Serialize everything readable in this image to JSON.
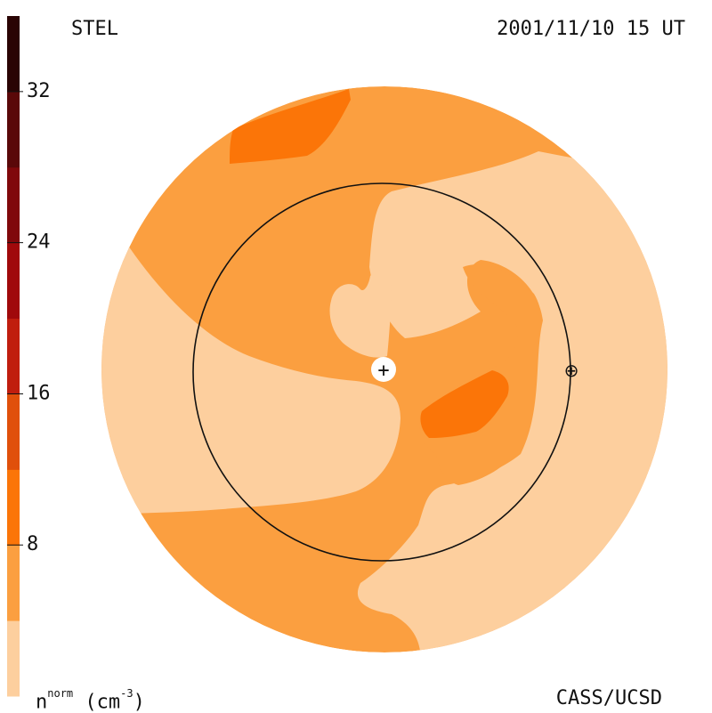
{
  "chart_data": {
    "type": "heatmap",
    "title_left": "STEL",
    "title_right": "2001/11/10 15 UT",
    "credit": "CASS/UCSD",
    "colorbar": {
      "label_main": "n",
      "label_sup": "norm",
      "label_units": "(cm",
      "label_units_sup": "-3",
      "label_units_close": ")",
      "range": [
        0,
        36
      ],
      "ticks": [
        {
          "value": 32,
          "label": "32"
        },
        {
          "value": 24,
          "label": "24"
        },
        {
          "value": 16,
          "label": "16"
        },
        {
          "value": 8,
          "label": "8"
        }
      ],
      "bands": [
        {
          "from": 0,
          "to": 4,
          "color": "#fdcf9e"
        },
        {
          "from": 4,
          "to": 8,
          "color": "#fb9f40"
        },
        {
          "from": 8,
          "to": 12,
          "color": "#fb7508"
        },
        {
          "from": 12,
          "to": 16,
          "color": "#e0500b"
        },
        {
          "from": 16,
          "to": 20,
          "color": "#c01e0e"
        },
        {
          "from": 20,
          "to": 24,
          "color": "#a0090b"
        },
        {
          "from": 24,
          "to": 28,
          "color": "#80080b"
        },
        {
          "from": 28,
          "to": 32,
          "color": "#5a0809"
        },
        {
          "from": 32,
          "to": 36,
          "color": "#2a0404"
        }
      ]
    },
    "map": {
      "background_level": "#fb9f40",
      "regions": [
        {
          "level": "#fdcf9e",
          "name": "light-region-west"
        },
        {
          "level": "#fdcf9e",
          "name": "light-region-east"
        },
        {
          "level": "#fdcf9e",
          "name": "light-region-center"
        },
        {
          "level": "#fb9f40",
          "name": "medium-lobe-east"
        },
        {
          "level": "#fb7508",
          "name": "dense-patch-north"
        },
        {
          "level": "#fb7508",
          "name": "dense-patch-east"
        }
      ],
      "markers": [
        {
          "name": "sun-marker",
          "symbol": "+"
        },
        {
          "name": "earth-marker",
          "symbol": "⊕"
        }
      ]
    }
  }
}
